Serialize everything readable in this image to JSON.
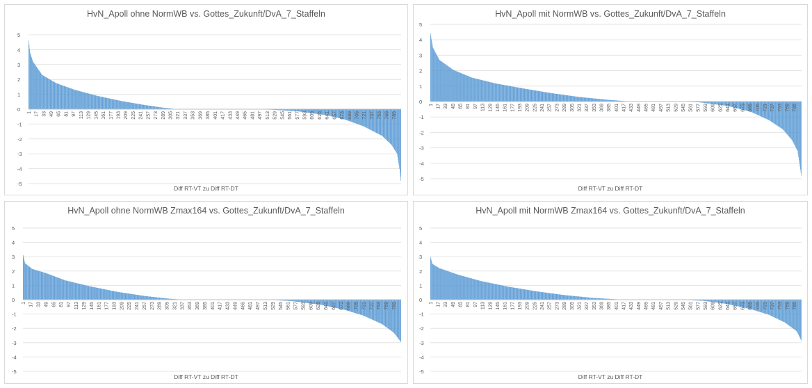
{
  "chart_data": [
    {
      "type": "bar",
      "title": "HvN_Apoll ohne NormWB vs. Gottes_Zukunft/DvA_7_Staffeln",
      "xlabel": "Diff RT-VT zu Diff RT-DT",
      "ylim": [
        -5,
        5
      ],
      "y_ticks": [
        5,
        4,
        3,
        2,
        1,
        0,
        -1,
        -2,
        -3,
        -4,
        -5
      ],
      "x_tick_labels": [
        "1",
        "17",
        "33",
        "49",
        "65",
        "81",
        "97",
        "113",
        "129",
        "145",
        "161",
        "177",
        "193",
        "209",
        "225",
        "241",
        "257",
        "273",
        "289",
        "305",
        "321",
        "337",
        "353",
        "369",
        "385",
        "401",
        "417",
        "433",
        "449",
        "465",
        "481",
        "497",
        "513",
        "529",
        "545",
        "561",
        "577",
        "593",
        "609",
        "625",
        "641",
        "657",
        "673",
        "689",
        "705",
        "721",
        "737",
        "753",
        "769",
        "785"
      ],
      "n": 800,
      "profile": [
        [
          1,
          4.6
        ],
        [
          4,
          3.8
        ],
        [
          10,
          3.2
        ],
        [
          30,
          2.3
        ],
        [
          60,
          1.75
        ],
        [
          100,
          1.3
        ],
        [
          150,
          0.88
        ],
        [
          200,
          0.55
        ],
        [
          250,
          0.28
        ],
        [
          290,
          0.1
        ],
        [
          315,
          0.02
        ],
        [
          330,
          0.0
        ],
        [
          440,
          0.0
        ],
        [
          520,
          -0.03
        ],
        [
          580,
          -0.15
        ],
        [
          640,
          -0.4
        ],
        [
          680,
          -0.7
        ],
        [
          720,
          -1.15
        ],
        [
          760,
          -1.8
        ],
        [
          780,
          -2.4
        ],
        [
          792,
          -3.0
        ],
        [
          797,
          -4.0
        ],
        [
          800,
          -4.8
        ]
      ],
      "grid": true,
      "color": "#5b9bd5"
    },
    {
      "type": "bar",
      "title": "HvN_Apoll mit NormWB vs. Gottes_Zukunft/DvA_7_Staffeln",
      "xlabel": "Diff RT-VT zu Diff RT-DT",
      "ylim": [
        -5,
        5
      ],
      "y_ticks": [
        5,
        4,
        3,
        2,
        1,
        0,
        -1,
        -2,
        -3,
        -4,
        -5
      ],
      "x_tick_labels": [
        "1",
        "17",
        "33",
        "49",
        "65",
        "81",
        "97",
        "113",
        "129",
        "145",
        "161",
        "177",
        "193",
        "209",
        "225",
        "241",
        "257",
        "273",
        "289",
        "305",
        "321",
        "337",
        "353",
        "369",
        "385",
        "401",
        "417",
        "433",
        "449",
        "465",
        "481",
        "497",
        "513",
        "529",
        "545",
        "561",
        "577",
        "593",
        "609",
        "625",
        "641",
        "657",
        "673",
        "689",
        "705",
        "721",
        "737",
        "753",
        "769",
        "785"
      ],
      "n": 800,
      "profile": [
        [
          1,
          4.4
        ],
        [
          6,
          3.5
        ],
        [
          20,
          2.7
        ],
        [
          50,
          2.05
        ],
        [
          90,
          1.55
        ],
        [
          140,
          1.18
        ],
        [
          200,
          0.85
        ],
        [
          260,
          0.55
        ],
        [
          320,
          0.3
        ],
        [
          380,
          0.12
        ],
        [
          420,
          0.03
        ],
        [
          450,
          0.0
        ],
        [
          530,
          0.0
        ],
        [
          580,
          -0.05
        ],
        [
          640,
          -0.28
        ],
        [
          690,
          -0.65
        ],
        [
          730,
          -1.2
        ],
        [
          760,
          -1.8
        ],
        [
          780,
          -2.5
        ],
        [
          792,
          -3.2
        ],
        [
          800,
          -4.8
        ]
      ],
      "grid": true,
      "color": "#5b9bd5"
    },
    {
      "type": "bar",
      "title": "HvN_Apoll ohne NormWB Zmax164 vs. Gottes_Zukunft/DvA_7_Staffeln",
      "xlabel": "Diff RT-VT zu Diff RT-DT",
      "ylim": [
        -5,
        5
      ],
      "y_ticks": [
        5,
        4,
        3,
        2,
        1,
        0,
        -1,
        -2,
        -3,
        -4,
        -5
      ],
      "x_tick_labels": [
        "1",
        "17",
        "33",
        "49",
        "65",
        "81",
        "97",
        "113",
        "129",
        "145",
        "161",
        "177",
        "193",
        "209",
        "225",
        "241",
        "257",
        "273",
        "289",
        "305",
        "321",
        "337",
        "353",
        "369",
        "385",
        "401",
        "417",
        "433",
        "449",
        "465",
        "481",
        "497",
        "513",
        "529",
        "545",
        "561",
        "577",
        "593",
        "609",
        "625",
        "641",
        "657",
        "673",
        "689",
        "705",
        "721",
        "737",
        "753",
        "769",
        "785"
      ],
      "n": 800,
      "profile": [
        [
          1,
          3.1
        ],
        [
          5,
          2.55
        ],
        [
          20,
          2.15
        ],
        [
          50,
          1.85
        ],
        [
          90,
          1.35
        ],
        [
          140,
          0.95
        ],
        [
          200,
          0.55
        ],
        [
          260,
          0.25
        ],
        [
          310,
          0.07
        ],
        [
          340,
          0.0
        ],
        [
          520,
          0.0
        ],
        [
          570,
          -0.1
        ],
        [
          630,
          -0.35
        ],
        [
          680,
          -0.7
        ],
        [
          720,
          -1.1
        ],
        [
          760,
          -1.7
        ],
        [
          785,
          -2.3
        ],
        [
          800,
          -2.95
        ]
      ],
      "grid": true,
      "color": "#5b9bd5"
    },
    {
      "type": "bar",
      "title": "HvN_Apoll mit NormWB Zmax164 vs. Gottes_Zukunft/DvA_7_Staffeln",
      "xlabel": "Diff RT-VT zu Diff RT-DT",
      "ylim": [
        -5,
        5
      ],
      "y_ticks": [
        5,
        4,
        3,
        2,
        1,
        0,
        -1,
        -2,
        -3,
        -4,
        -5
      ],
      "x_tick_labels": [
        "1",
        "17",
        "33",
        "49",
        "65",
        "81",
        "97",
        "113",
        "129",
        "145",
        "161",
        "177",
        "193",
        "209",
        "225",
        "241",
        "257",
        "273",
        "289",
        "305",
        "321",
        "337",
        "353",
        "369",
        "385",
        "401",
        "417",
        "433",
        "449",
        "465",
        "481",
        "497",
        "513",
        "529",
        "545",
        "561",
        "577",
        "593",
        "609",
        "625",
        "641",
        "657",
        "673",
        "689",
        "705",
        "721",
        "737",
        "753",
        "769",
        "785"
      ],
      "n": 800,
      "profile": [
        [
          1,
          3.0
        ],
        [
          5,
          2.5
        ],
        [
          20,
          2.2
        ],
        [
          60,
          1.75
        ],
        [
          110,
          1.3
        ],
        [
          170,
          0.9
        ],
        [
          230,
          0.58
        ],
        [
          290,
          0.32
        ],
        [
          350,
          0.13
        ],
        [
          400,
          0.03
        ],
        [
          430,
          0.0
        ],
        [
          540,
          0.0
        ],
        [
          590,
          -0.08
        ],
        [
          640,
          -0.3
        ],
        [
          690,
          -0.65
        ],
        [
          730,
          -1.05
        ],
        [
          765,
          -1.6
        ],
        [
          790,
          -2.2
        ],
        [
          800,
          -2.85
        ]
      ],
      "grid": true,
      "color": "#5b9bd5"
    }
  ]
}
